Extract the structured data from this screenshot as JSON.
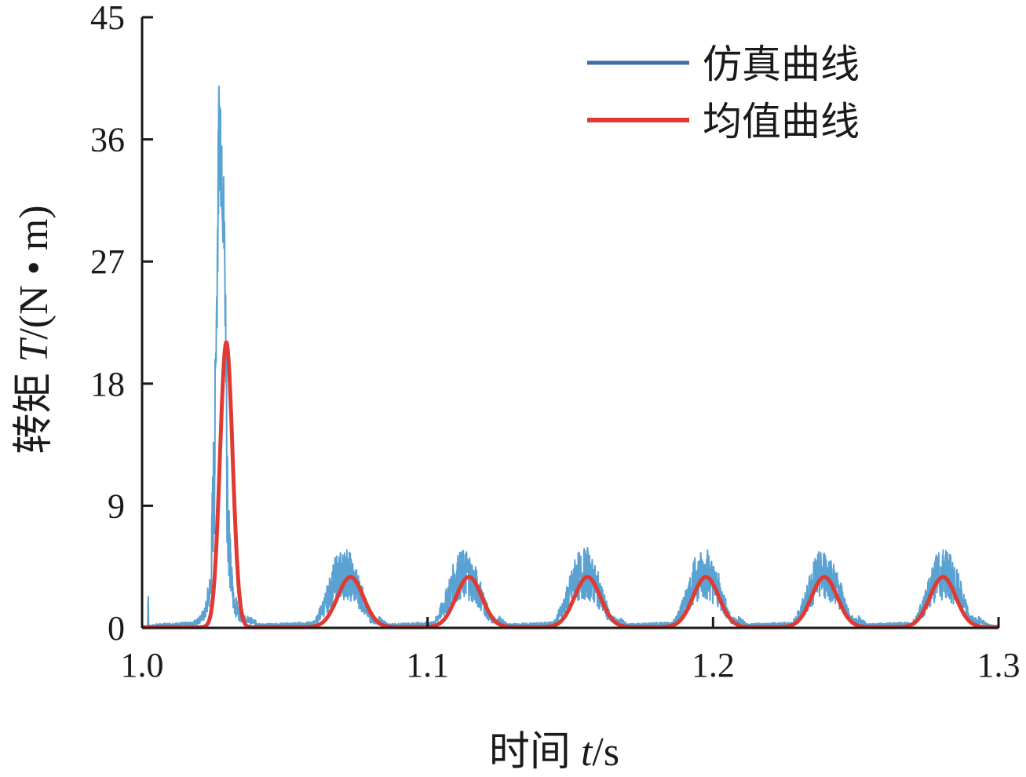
{
  "chart_data": {
    "type": "line",
    "xlabel": {
      "prefix": "时间 ",
      "var": "t",
      "suffix": "/s"
    },
    "ylabel": {
      "prefix": "转矩 ",
      "var": "T",
      "suffix": "/(N • m)"
    },
    "xlim": [
      1.0,
      1.3
    ],
    "ylim": [
      0,
      45
    ],
    "x_ticks": [
      1.0,
      1.1,
      1.2,
      1.3
    ],
    "x_tick_labels": [
      "1.0",
      "1.1",
      "1.2",
      "1.3"
    ],
    "y_ticks": [
      0,
      9,
      18,
      27,
      36,
      45
    ],
    "y_tick_labels": [
      "0",
      "9",
      "18",
      "27",
      "36",
      "45"
    ],
    "grid": false,
    "legend_position": "top-right",
    "series": [
      {
        "name": "仿真曲线",
        "color": "#3f6ea6",
        "plot_color": "#5aa2d2",
        "description_points": {
          "x": [
            1.0,
            1.002,
            1.0021,
            1.0023,
            1.005,
            1.018,
            1.022,
            1.024,
            1.026,
            1.027,
            1.028,
            1.029,
            1.03,
            1.031,
            1.032,
            1.034,
            1.037,
            1.042,
            1.06,
            1.064,
            1.068,
            1.072,
            1.076,
            1.08,
            1.086,
            1.102,
            1.106,
            1.11,
            1.114,
            1.118,
            1.122,
            1.128,
            1.144,
            1.148,
            1.152,
            1.156,
            1.16,
            1.164,
            1.17,
            1.186,
            1.19,
            1.194,
            1.198,
            1.202,
            1.206,
            1.212,
            1.228,
            1.232,
            1.236,
            1.24,
            1.244,
            1.248,
            1.254,
            1.27,
            1.274,
            1.278,
            1.282,
            1.286,
            1.29,
            1.296,
            1.3
          ],
          "y": [
            0.1,
            0.1,
            3.5,
            0.1,
            0.2,
            0.3,
            1.5,
            4.5,
            25,
            43,
            40,
            30,
            14,
            6,
            3,
            1.5,
            0.6,
            0.2,
            0.3,
            2.5,
            5.5,
            6.0,
            4.0,
            1.0,
            0.2,
            0.3,
            2.5,
            5.5,
            6.0,
            4.0,
            1.0,
            0.2,
            0.3,
            2.5,
            5.5,
            6.0,
            4.0,
            1.0,
            0.2,
            0.3,
            2.5,
            5.5,
            6.0,
            4.0,
            1.0,
            0.2,
            0.3,
            2.5,
            5.5,
            6.0,
            4.0,
            1.0,
            0.2,
            0.3,
            2.5,
            5.5,
            6.0,
            4.0,
            1.0,
            0.2,
            0.1
          ]
        }
      },
      {
        "name": "均值曲线",
        "color": "#e03a33",
        "peaks": [
          {
            "center": 1.0295,
            "amplitude": 21.0,
            "width": 0.0022
          },
          {
            "center": 1.073,
            "amplitude": 3.7,
            "width": 0.0045
          },
          {
            "center": 1.1145,
            "amplitude": 3.7,
            "width": 0.0045
          },
          {
            "center": 1.156,
            "amplitude": 3.7,
            "width": 0.0045
          },
          {
            "center": 1.1975,
            "amplitude": 3.7,
            "width": 0.0045
          },
          {
            "center": 1.239,
            "amplitude": 3.7,
            "width": 0.0045
          },
          {
            "center": 1.2805,
            "amplitude": 3.7,
            "width": 0.0045
          }
        ],
        "baseline": 0.05
      }
    ]
  }
}
